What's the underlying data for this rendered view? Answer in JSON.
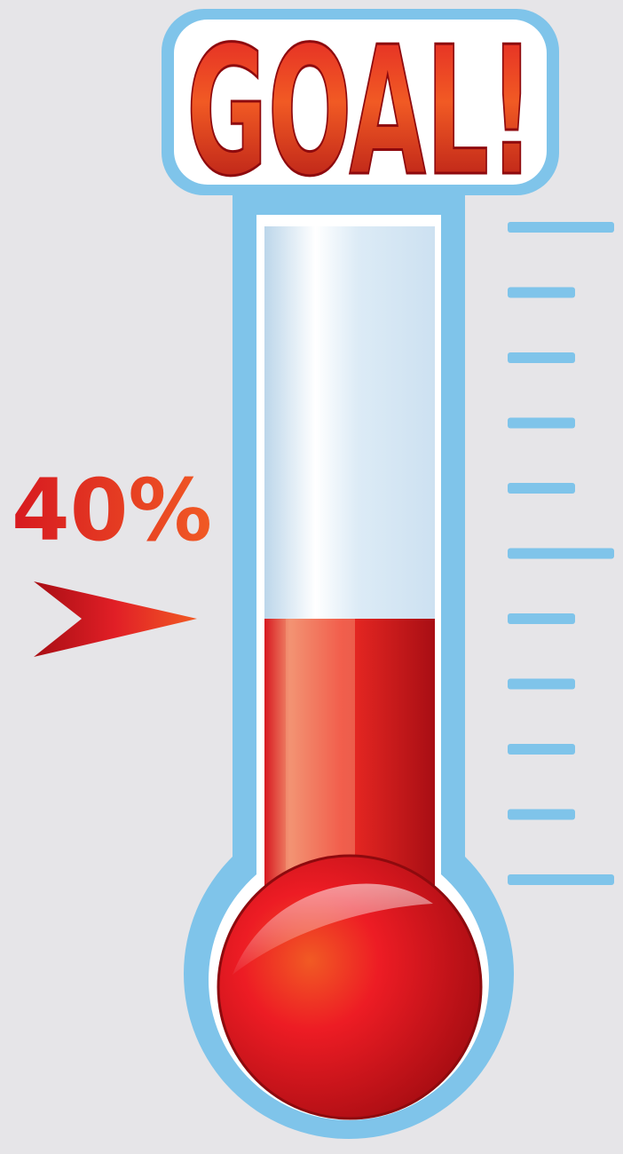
{
  "goal_label": "GOAL!",
  "progress": {
    "label": "40%",
    "fraction": 0.4
  },
  "scale": {
    "major_ticks": 3,
    "minor_ticks_between": 4
  },
  "colors": {
    "background": "#e6e5e8",
    "frame_blue": "#7fc4ea",
    "tube_white": "#ffffff",
    "glass_light": "#d7e8f4",
    "mercury_red": "#e11f26",
    "mercury_dark": "#a80e14",
    "accent_orange": "#f15a24"
  },
  "icons": {
    "pointer": "arrow-right-icon"
  }
}
